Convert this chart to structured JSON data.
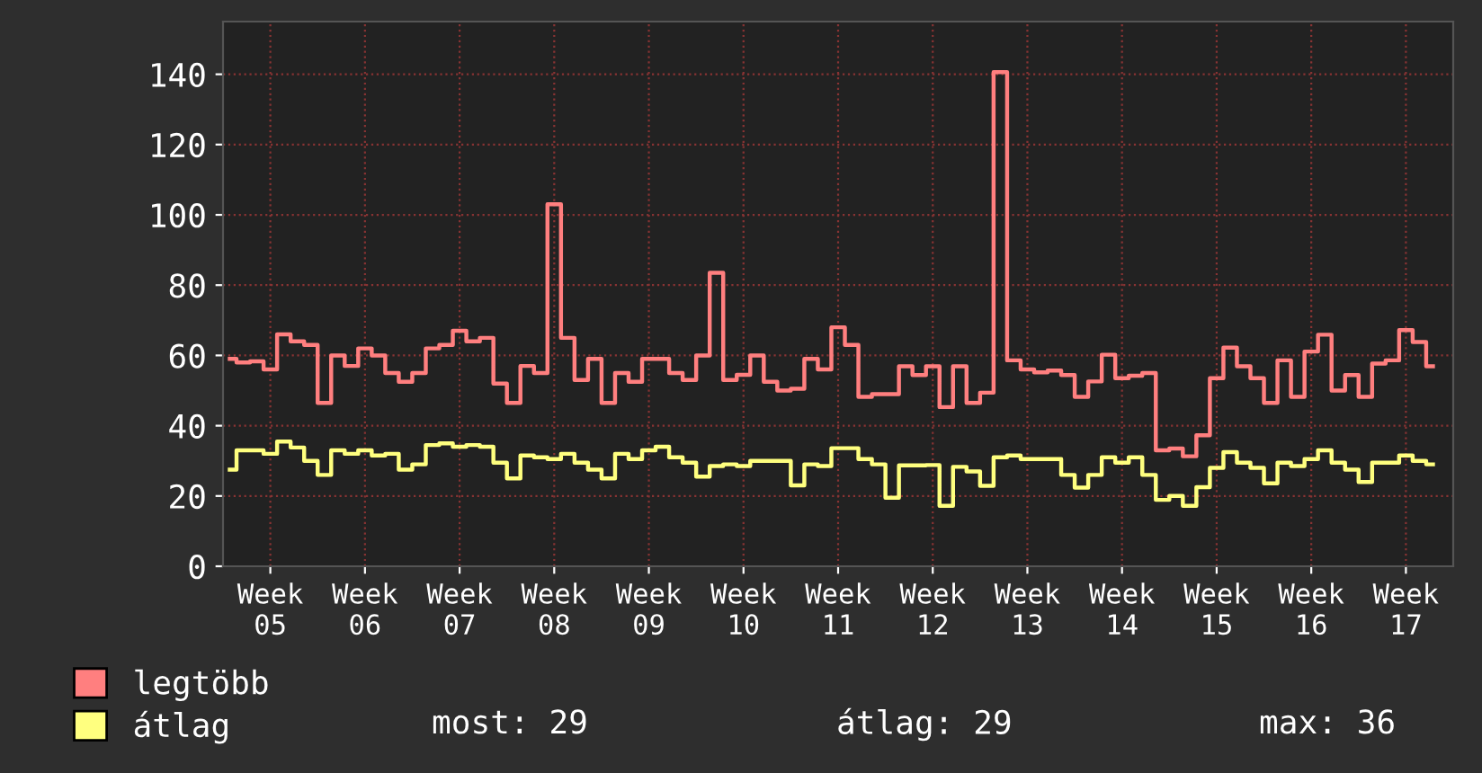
{
  "chart_data": {
    "type": "step",
    "ylim": [
      0,
      155
    ],
    "yticks": [
      0,
      20,
      40,
      60,
      80,
      100,
      120,
      140
    ],
    "categories": [
      null,
      null,
      null,
      "Week 05",
      null,
      null,
      null,
      null,
      null,
      null,
      "Week 06",
      null,
      null,
      null,
      null,
      null,
      null,
      "Week 07",
      null,
      null,
      null,
      null,
      null,
      null,
      "Week 08",
      null,
      null,
      null,
      null,
      null,
      null,
      "Week 09",
      null,
      null,
      null,
      null,
      null,
      null,
      "Week 10",
      null,
      null,
      null,
      null,
      null,
      null,
      "Week 11",
      null,
      null,
      null,
      null,
      null,
      null,
      "Week 12",
      null,
      null,
      null,
      null,
      null,
      null,
      "Week 13",
      null,
      null,
      null,
      null,
      null,
      null,
      "Week 14",
      null,
      null,
      null,
      null,
      null,
      null,
      "Week 15",
      null,
      null,
      null,
      null,
      null,
      null,
      "Week 16",
      null,
      null,
      null,
      null,
      null,
      null,
      "Week 17",
      null,
      null
    ],
    "grid": true,
    "legend": "bottom left",
    "series": [
      {
        "name": "legtöbb",
        "color": "#ff7f7f",
        "values": [
          59,
          58,
          58.3,
          56,
          66,
          64,
          63,
          46.5,
          60,
          57,
          62,
          60,
          55,
          52.5,
          55,
          62,
          63,
          67,
          64,
          65,
          52,
          46.5,
          57,
          55,
          103,
          65,
          53,
          59,
          46.5,
          55,
          52.5,
          59,
          59,
          55,
          53,
          60,
          83.5,
          53,
          54.5,
          60,
          52.5,
          50,
          50.5,
          59,
          56,
          68,
          63,
          48.2,
          49,
          49,
          56.9,
          54.4,
          56.9,
          45.3,
          56.9,
          46.5,
          49.4,
          140.6,
          58.6,
          56,
          55.2,
          55.7,
          54.4,
          48.2,
          52.6,
          60.2,
          53.5,
          54.2,
          55,
          33,
          33.5,
          31.3,
          37.3,
          53.5,
          62.2,
          56.9,
          53.5,
          46.5,
          58.6,
          48.2,
          61.1,
          65.9,
          50,
          54.4,
          48.2,
          57.7,
          58.6,
          67.2,
          63.8,
          56.9
        ]
      },
      {
        "name": "átlag",
        "color": "#ffff7f",
        "values": [
          27.5,
          33,
          33,
          32,
          35.5,
          33.8,
          30,
          26,
          33,
          32,
          33,
          31.5,
          32,
          27.5,
          29,
          34.5,
          35,
          34,
          34.5,
          34,
          29.5,
          25,
          31.5,
          31,
          30.5,
          32,
          29.5,
          27.5,
          25,
          32,
          30.5,
          33,
          34,
          31,
          29.5,
          25.5,
          28.5,
          29,
          28.5,
          30,
          30,
          30,
          23,
          29,
          28.5,
          33.6,
          33.6,
          30.5,
          29,
          19.5,
          28.7,
          28.7,
          28.8,
          17.2,
          28.3,
          27,
          22.9,
          31,
          31.5,
          30.5,
          30.5,
          30.5,
          26,
          22.4,
          26,
          31,
          29.5,
          31,
          26,
          18.9,
          20,
          17.2,
          22.5,
          28,
          32.5,
          29.5,
          28,
          23.6,
          29.5,
          28.5,
          30.5,
          33,
          29.5,
          27.5,
          24,
          29.5,
          29.5,
          31.5,
          30,
          29
        ]
      }
    ],
    "annotations": [
      "most: 29",
      "átlag: 29",
      "max: 36"
    ]
  }
}
